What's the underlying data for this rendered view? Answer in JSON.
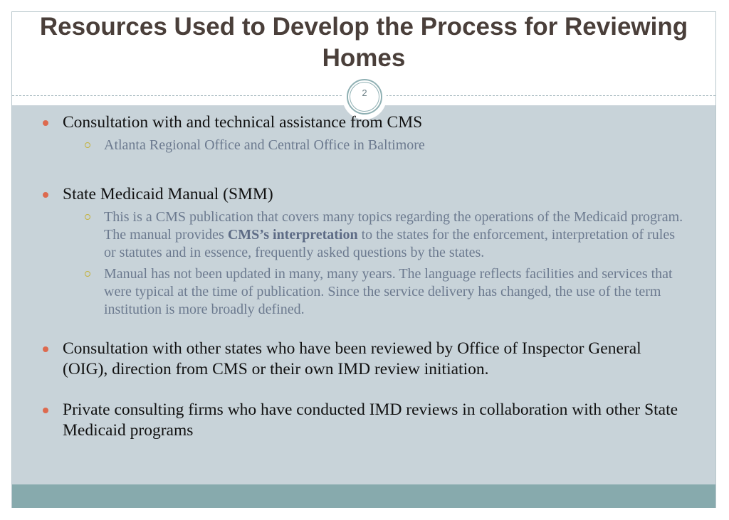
{
  "slide": {
    "title": "Resources Used to Develop the Process for Reviewing Homes",
    "page_number": "2"
  },
  "bullets": [
    {
      "text": "Consultation with and technical assistance from CMS",
      "subs": [
        "Atlanta Regional Office and Central Office in Baltimore"
      ]
    },
    {
      "text": "State Medicaid Manual (SMM)",
      "sub1_before": "This is a CMS publication that covers many topics regarding the operations of the Medicaid program. The manual provides ",
      "sub1_bold": "CMS’s interpretation",
      "sub1_after": " to the states for the enforcement, interpretation of rules or statutes and in essence, frequently asked questions by the states.",
      "sub2": "Manual has not been updated in many, many years.  The language reflects facilities and services that were typical at the time of publication. Since the service delivery has changed, the use of the term institution is more broadly defined."
    },
    {
      "text": "Consultation with other states who have been reviewed by Office of Inspector General (OIG), direction from CMS or their own IMD review initiation."
    },
    {
      "text": "Private consulting firms who have conducted IMD reviews in collaboration with other State Medicaid programs"
    }
  ],
  "colors": {
    "title": "#4a3f3a",
    "content_background": "#c8d3d9",
    "footer_bar": "#87aaad",
    "bullet_dot": "#dd6a4f",
    "sub_bullet_ring": "#c4b23b",
    "sub_text": "#6c7a8f"
  }
}
